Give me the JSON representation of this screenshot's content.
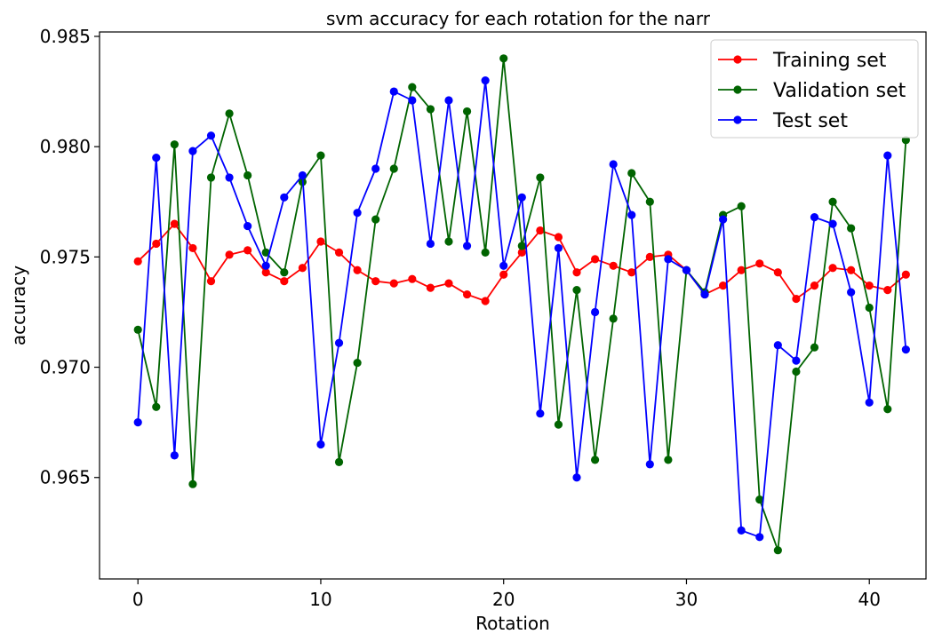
{
  "chart_data": {
    "type": "line",
    "title": "svm accuracy for each rotation for the narr",
    "xlabel": "Rotation",
    "ylabel": "accuracy",
    "xlim": [
      -2.1,
      43.1
    ],
    "ylim": [
      0.9604,
      0.9852
    ],
    "xticks": [
      0,
      10,
      20,
      30,
      40
    ],
    "xtick_labels": [
      "0",
      "10",
      "20",
      "30",
      "40"
    ],
    "yticks": [
      0.965,
      0.97,
      0.975,
      0.98,
      0.985
    ],
    "ytick_labels": [
      "0.965",
      "0.970",
      "0.975",
      "0.980",
      "0.985"
    ],
    "grid": false,
    "legend_position": "top-right",
    "x": [
      0,
      1,
      2,
      3,
      4,
      5,
      6,
      7,
      8,
      9,
      10,
      11,
      12,
      13,
      14,
      15,
      16,
      17,
      18,
      19,
      20,
      21,
      22,
      23,
      24,
      25,
      26,
      27,
      28,
      29,
      30,
      31,
      32,
      33,
      34,
      35,
      36,
      37,
      38,
      39,
      40,
      41,
      42
    ],
    "series": [
      {
        "name": "Training set",
        "color": "#ff0000",
        "values": [
          0.9748,
          0.9756,
          0.9765,
          0.9754,
          0.9739,
          0.9751,
          0.9753,
          0.9743,
          0.9739,
          0.9745,
          0.9757,
          0.9752,
          0.9744,
          0.9739,
          0.9738,
          0.974,
          0.9736,
          0.9738,
          0.9733,
          0.973,
          0.9742,
          0.9752,
          0.9762,
          0.9759,
          0.9743,
          0.9749,
          0.9746,
          0.9743,
          0.975,
          0.9751,
          0.9744,
          0.9733,
          0.9737,
          0.9744,
          0.9747,
          0.9743,
          0.9731,
          0.9737,
          0.9745,
          0.9744,
          0.9737,
          0.9735,
          0.9742
        ]
      },
      {
        "name": "Validation set",
        "color": "#006400",
        "values": [
          0.9717,
          0.9682,
          0.9801,
          0.9647,
          0.9786,
          0.9815,
          0.9787,
          0.9752,
          0.9743,
          0.9784,
          0.9796,
          0.9657,
          0.9702,
          0.9767,
          0.979,
          0.9827,
          0.9817,
          0.9757,
          0.9816,
          0.9752,
          0.984,
          0.9755,
          0.9786,
          0.9674,
          0.9735,
          0.9658,
          0.9722,
          0.9788,
          0.9775,
          0.9658,
          0.9744,
          0.9734,
          0.9769,
          0.9773,
          0.964,
          0.9617,
          0.9698,
          0.9709,
          0.9775,
          0.9763,
          0.9727,
          0.9681,
          0.9803
        ]
      },
      {
        "name": "Test set",
        "color": "#0000ff",
        "values": [
          0.9675,
          0.9795,
          0.966,
          0.9798,
          0.9805,
          0.9786,
          0.9764,
          0.9746,
          0.9777,
          0.9787,
          0.9665,
          0.9711,
          0.977,
          0.979,
          0.9825,
          0.9821,
          0.9756,
          0.9821,
          0.9755,
          0.983,
          0.9746,
          0.9777,
          0.9679,
          0.9754,
          0.965,
          0.9725,
          0.9792,
          0.9769,
          0.9656,
          0.9749,
          0.9744,
          0.9733,
          0.9767,
          0.9626,
          0.9623,
          0.971,
          0.9703,
          0.9768,
          0.9765,
          0.9734,
          0.9684,
          0.9796,
          0.9708
        ]
      }
    ]
  }
}
